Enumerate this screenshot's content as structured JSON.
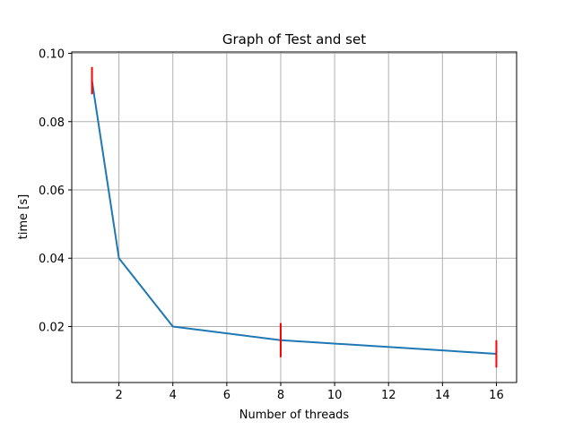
{
  "chart_data": {
    "type": "line",
    "title": "Graph of Test and set",
    "xlabel": "Number of threads",
    "ylabel": "time [s]",
    "x": [
      1,
      2,
      4,
      8,
      16
    ],
    "series": [
      {
        "values": [
          0.092,
          0.04,
          0.02,
          0.016,
          0.012
        ],
        "color": "#1f77b4"
      }
    ],
    "error_bars": {
      "color": "#ff0000",
      "points": [
        {
          "x": 1,
          "low": 0.088,
          "high": 0.096
        },
        {
          "x": 8,
          "low": 0.011,
          "high": 0.021
        },
        {
          "x": 16,
          "low": 0.008,
          "high": 0.016
        }
      ]
    },
    "xlim": [
      0.25,
      16.75
    ],
    "ylim": [
      0.0036,
      0.1004
    ],
    "xticks": [
      2,
      4,
      6,
      8,
      10,
      12,
      14,
      16
    ],
    "xtick_labels": [
      "2",
      "4",
      "6",
      "8",
      "10",
      "12",
      "14",
      "16"
    ],
    "yticks": [
      0.02,
      0.04,
      0.06,
      0.08,
      0.1
    ],
    "ytick_labels": [
      "0.02",
      "0.04",
      "0.06",
      "0.08",
      "0.10"
    ],
    "grid": true
  }
}
